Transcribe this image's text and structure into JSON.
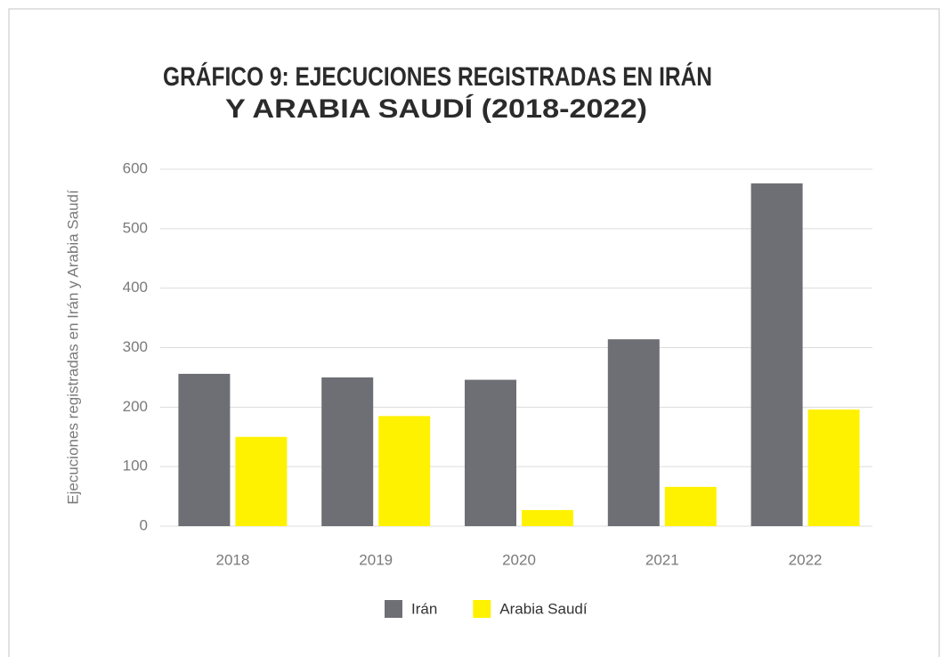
{
  "chart_data": {
    "type": "bar",
    "title": [
      "GRÁFICO 9: EJECUCIONES REGISTRADAS EN IRÁN",
      "Y ARABIA SAUDÍ (2018-2022)"
    ],
    "y_label": "Ejecuciones registradas en Irán y Arabia Saudí",
    "categories": [
      "2018",
      "2019",
      "2020",
      "2021",
      "2022"
    ],
    "series": [
      {
        "name": "Irán",
        "color": "#6e6f75",
        "values": [
          256,
          250,
          246,
          314,
          576
        ]
      },
      {
        "name": "Arabia Saudí",
        "color": "#fff200",
        "values": [
          150,
          185,
          27,
          66,
          196
        ]
      }
    ],
    "ylim": [
      0,
      600
    ],
    "yticks": [
      0,
      100,
      200,
      300,
      400,
      500,
      600
    ],
    "grid": true,
    "legend": "bottom"
  }
}
